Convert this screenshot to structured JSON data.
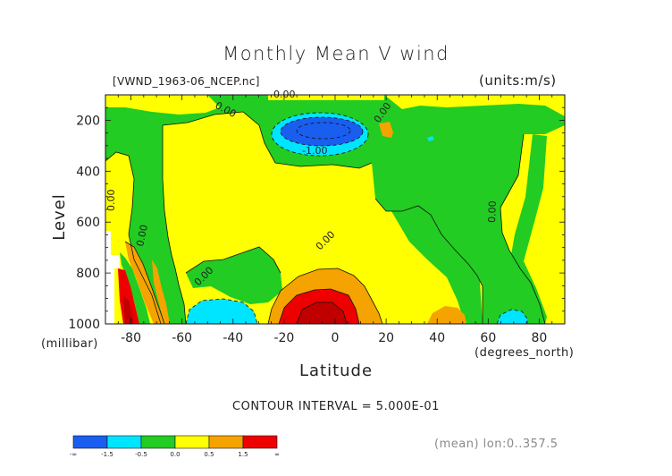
{
  "chart_data": {
    "type": "heatmap",
    "title": "Monthly Mean V wind",
    "source_label": "[VWND_1963-06_NCEP.nc]",
    "units_label": "(units:m/s)",
    "xlabel": "Latitude",
    "x_units": "(degrees_north)",
    "ylabel": "Level",
    "y_units": "(millibar)",
    "x_ticks": [
      "-80",
      "-60",
      "-40",
      "-20",
      "0",
      "20",
      "40",
      "60",
      "80"
    ],
    "y_ticks": [
      "200",
      "400",
      "600",
      "800",
      "1000"
    ],
    "xlim": [
      -90,
      90
    ],
    "ylim": [
      1000,
      100
    ],
    "contour_interval_text": "CONTOUR INTERVAL = 5.000E-01",
    "contour_labels": [
      "0.00",
      "0.00",
      "0.00",
      "0.00",
      "0.00",
      "0.00",
      "0.00",
      "0.00",
      "-1.00"
    ],
    "colorbar": {
      "levels": [
        "-∞",
        "-1.5",
        "-0.5",
        "0.0",
        "0.5",
        "1.5",
        "∞"
      ],
      "colors": [
        "#1a5ef0",
        "#00e5ff",
        "#22cc22",
        "#ffff00",
        "#f5a300",
        "#ee0000"
      ]
    },
    "footnote": "(mean) lon:0..357.5",
    "fill_colors": {
      "blue": "#1a5ef0",
      "cyan": "#00e5ff",
      "green": "#22cc22",
      "yellow": "#ffff00",
      "orange": "#f5a300",
      "red": "#ee0000",
      "darkred": "#c00000"
    }
  }
}
